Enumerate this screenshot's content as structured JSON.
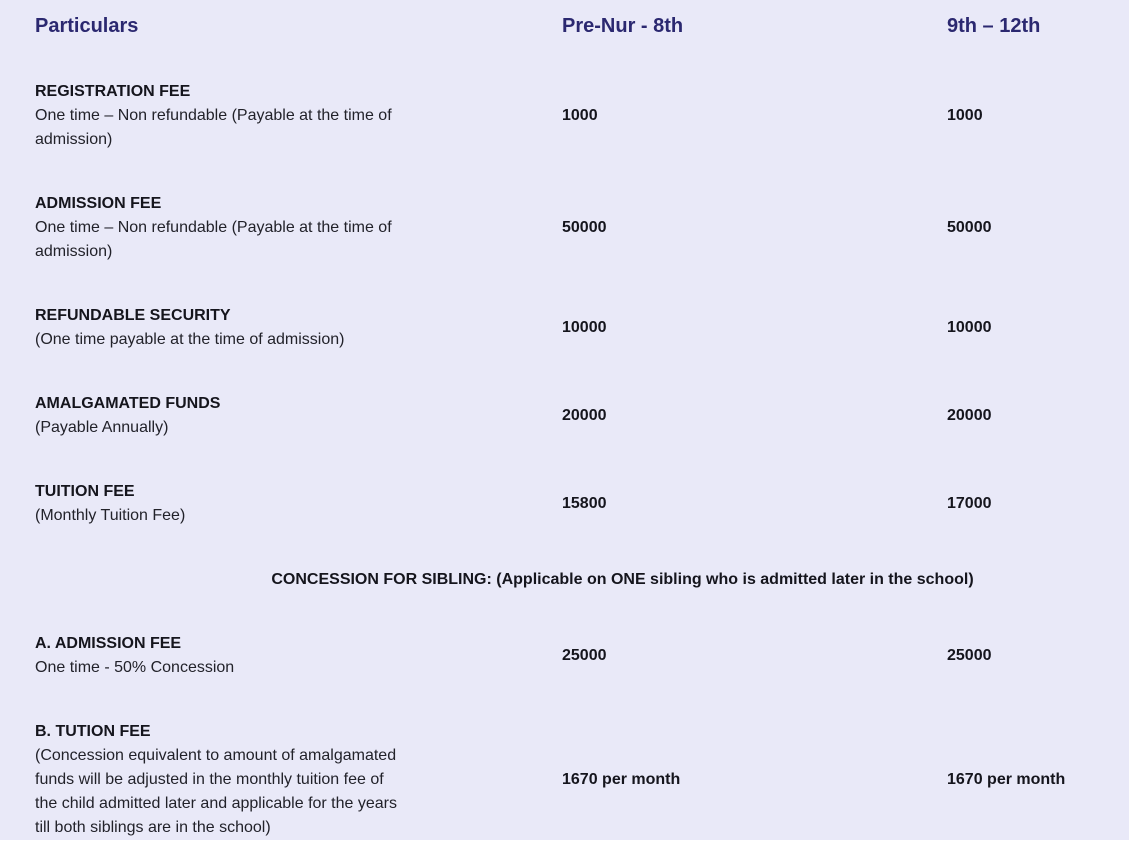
{
  "page": {
    "background_color": "#e9e9f8",
    "header_text_color": "#2b2870",
    "body_text_color": "#15151d"
  },
  "table": {
    "header": {
      "particulars": "Particulars",
      "pre_nur_8th": "Pre-Nur - 8th",
      "nine_12th": "9th – 12th"
    },
    "rows": [
      {
        "title": "REGISTRATION FEE",
        "desc": "One time – Non refundable (Payable at the time of\nadmission)",
        "pre_nur_8th": "1000",
        "nine_12th": "1000"
      },
      {
        "title": "ADMISSION FEE",
        "desc": "One time – Non refundable (Payable at the time of\nadmission)",
        "pre_nur_8th": "50000",
        "nine_12th": "50000"
      },
      {
        "title": "REFUNDABLE SECURITY",
        "desc": "(One time payable at the time of admission)",
        "pre_nur_8th": "10000",
        "nine_12th": "10000"
      },
      {
        "title": "AMALGAMATED FUNDS",
        "desc": "(Payable Annually)",
        "pre_nur_8th": "20000",
        "nine_12th": "20000"
      },
      {
        "title": "TUITION FEE",
        "desc": "(Monthly Tuition Fee)",
        "pre_nur_8th": "15800",
        "nine_12th": "17000"
      }
    ],
    "section_header": {
      "prefix": "CONCESSION FOR SIBLING: (Applicable on ",
      "emphasis": "ONE",
      "suffix": " sibling who is admitted later in the school)"
    },
    "sibling_rows": [
      {
        "title": "A. ADMISSION FEE",
        "desc": "One time - 50% Concession",
        "pre_nur_8th": "25000",
        "nine_12th": "25000"
      },
      {
        "title": "B. TUTION FEE",
        "desc": "(Concession equivalent to amount of amalgamated\nfunds will be adjusted in the monthly tuition fee of\nthe child admitted later and applicable for the years\ntill both siblings are in the school)",
        "pre_nur_8th": "1670 per month",
        "nine_12th": "1670 per month"
      }
    ]
  }
}
